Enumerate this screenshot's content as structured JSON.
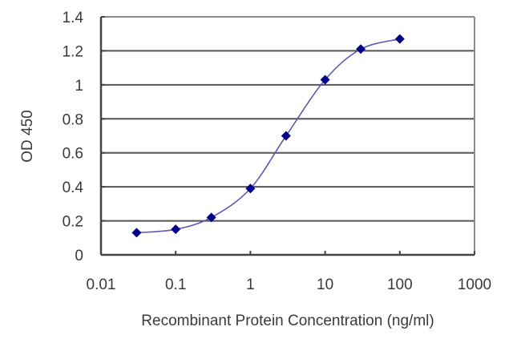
{
  "chart_data": {
    "type": "line",
    "title": "",
    "xlabel": "Recombinant Protein Concentration (ng/ml)",
    "ylabel": "OD 450",
    "xscale": "log",
    "xlim": [
      0.01,
      1000
    ],
    "ylim": [
      0,
      1.4
    ],
    "x_ticks": [
      "0.01",
      "0.1",
      "1",
      "10",
      "100",
      "1000"
    ],
    "y_ticks": [
      "0",
      "0.2",
      "0.4",
      "0.6",
      "0.8",
      "1",
      "1.2",
      "1.4"
    ],
    "grid": "horizontal",
    "legend": null,
    "series": [
      {
        "name": "OD 450",
        "color": "#00008B",
        "line_color": "#5A5AB4",
        "marker": "diamond",
        "x": [
          0.03,
          0.1,
          0.3,
          1,
          3,
          10,
          30,
          100
        ],
        "y": [
          0.13,
          0.15,
          0.22,
          0.39,
          0.7,
          1.03,
          1.21,
          1.27
        ]
      }
    ]
  }
}
